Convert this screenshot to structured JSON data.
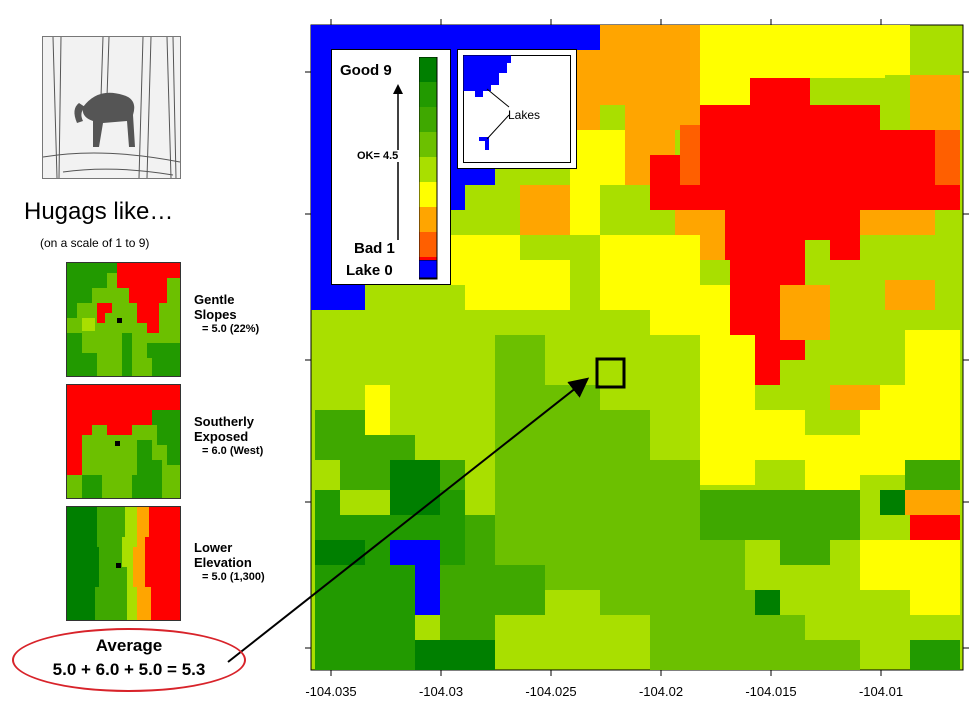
{
  "sidebar": {
    "image_icon": "moose-sketch-icon",
    "heading": "Hugags like…",
    "subheading": "(on a scale of 1 to 9)",
    "factors": [
      {
        "line1": "Gentle",
        "line2": "Slopes",
        "value": "= 5.0 (22%)"
      },
      {
        "line1": "Southerly",
        "line2": "Exposed",
        "value": "= 6.0 (West)"
      },
      {
        "line1": "Lower",
        "line2": "Elevation",
        "value": "= 5.0 (1,300)"
      }
    ],
    "average": {
      "title": "Average",
      "formula": "5.0 + 6.0 + 5.0 = 5.3"
    }
  },
  "legend": {
    "good": "Good  9",
    "ok": "OK= 4.5",
    "bad": "Bad  1",
    "lake": "Lake  0",
    "colors": [
      "#007f00",
      "#229a00",
      "#3fa800",
      "#6cc000",
      "#a9df00",
      "#ffff00",
      "#ffa500",
      "#ff5f00",
      "#ff0000",
      "#0000ff"
    ]
  },
  "inset": {
    "label": "Lakes",
    "lake_color": "#0000ff"
  },
  "axis": {
    "x_ticks": [
      "-104.035",
      "-104.03",
      "-104.025",
      "-104.02",
      "-104.015",
      "-104.01"
    ]
  },
  "colors": {
    "accent": "#d8232a",
    "lake": "#0000ff"
  }
}
